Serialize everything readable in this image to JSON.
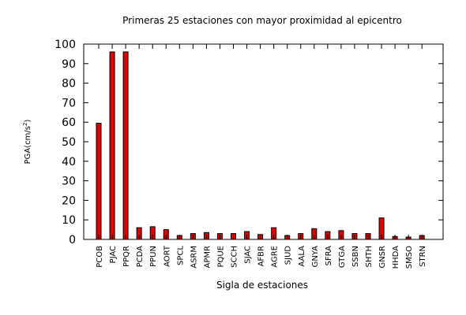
{
  "chart_data": {
    "type": "bar",
    "title": "Primeras 25 estaciones con mayor proximidad al epicentro",
    "xlabel": "Sigla de estaciones",
    "ylabel": "PGA(cm/s",
    "ylabel_sup": "2",
    "ylabel_end": ")",
    "ylim": [
      0,
      100
    ],
    "yticks": [
      "0",
      "10",
      "20",
      "30",
      "40",
      "50",
      "60",
      "70",
      "80",
      "90",
      "100"
    ],
    "categories": [
      "PCOB",
      "PJAC",
      "PPQR",
      "PCDA",
      "PPUN",
      "AORT",
      "SPCL",
      "ASRM",
      "APMR",
      "PQUE",
      "SCCH",
      "SJAC",
      "AFBR",
      "AGRE",
      "SJUD",
      "AALA",
      "GNYA",
      "SFRA",
      "GTGA",
      "SSBN",
      "SHTH",
      "GNSR",
      "HHDA",
      "SMSO",
      "STRN"
    ],
    "values": [
      59.5,
      96,
      96,
      6,
      6.5,
      5,
      2,
      3,
      3.5,
      3,
      3,
      4,
      2.5,
      6,
      2,
      3,
      5.5,
      4,
      4.5,
      3,
      3,
      11,
      1.5,
      1.2,
      2
    ],
    "bar_color": "#dd0000",
    "grid": false,
    "legend": "none"
  }
}
